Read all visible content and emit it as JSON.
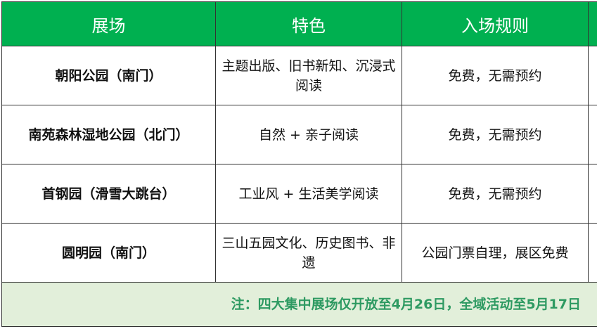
{
  "header": [
    "展场",
    "特色",
    "入场规则",
    ""
  ],
  "rows": [
    {
      "venue": "朝阳公园（南门）",
      "feature": "主题出版、旧书新知、沉浸式阅读",
      "rule": "免费，无需预约"
    },
    {
      "venue": "南苑森林湿地公园（北门）",
      "feature": "自然 + 亲子阅读",
      "rule": "免费，无需预约"
    },
    {
      "venue": "首钢园（滑雪大跳台）",
      "feature": "工业风 + 生活美学阅读",
      "rule": "免费，无需预约"
    },
    {
      "venue": "圆明园（南门）",
      "feature": "三山五园文化、历史图书、非遗",
      "rule": "公园门票自理，展区免费"
    }
  ],
  "note": "注：四大集中展场仅开放至4月26日，全域活动至5月17日",
  "colors": {
    "header_bg": "#00b050",
    "note_bg": "#e2efda",
    "note_text": "#2e9a62"
  }
}
